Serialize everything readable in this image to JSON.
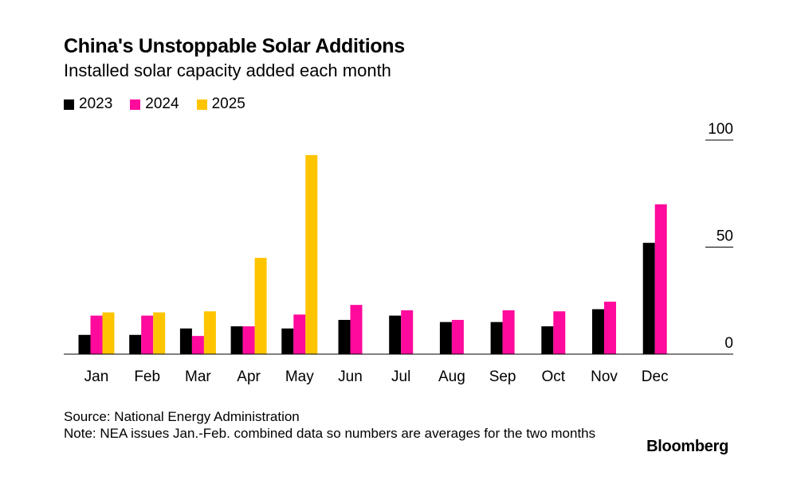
{
  "chart_data": {
    "type": "bar",
    "title": "China's Unstoppable Solar Additions",
    "subtitle": "Installed solar capacity added each month",
    "categories": [
      "Jan",
      "Feb",
      "Mar",
      "Apr",
      "May",
      "Jun",
      "Jul",
      "Aug",
      "Sep",
      "Oct",
      "Nov",
      "Dec"
    ],
    "series": [
      {
        "name": "2023",
        "color": "#000000",
        "values": [
          9,
          9,
          12,
          13,
          12,
          16,
          18,
          15,
          15,
          13,
          21,
          52
        ]
      },
      {
        "name": "2024",
        "color": "#ff0a9c",
        "values": [
          18,
          18,
          8.5,
          13,
          18.5,
          23,
          20.5,
          16,
          20.5,
          20,
          24.5,
          70
        ]
      },
      {
        "name": "2025",
        "color": "#ffc400",
        "values": [
          19.5,
          19.5,
          20,
          45,
          93,
          null,
          null,
          null,
          null,
          null,
          null,
          null
        ]
      }
    ],
    "ylim": [
      0,
      100
    ],
    "yticks": [
      0,
      50,
      100
    ],
    "xlabel": "",
    "ylabel": "",
    "legend_position": "top-left"
  },
  "footer": {
    "source": "Source: National Energy Administration",
    "note": "Note: NEA issues Jan.-Feb. combined data so numbers are averages for the two months"
  },
  "brand": "Bloomberg"
}
